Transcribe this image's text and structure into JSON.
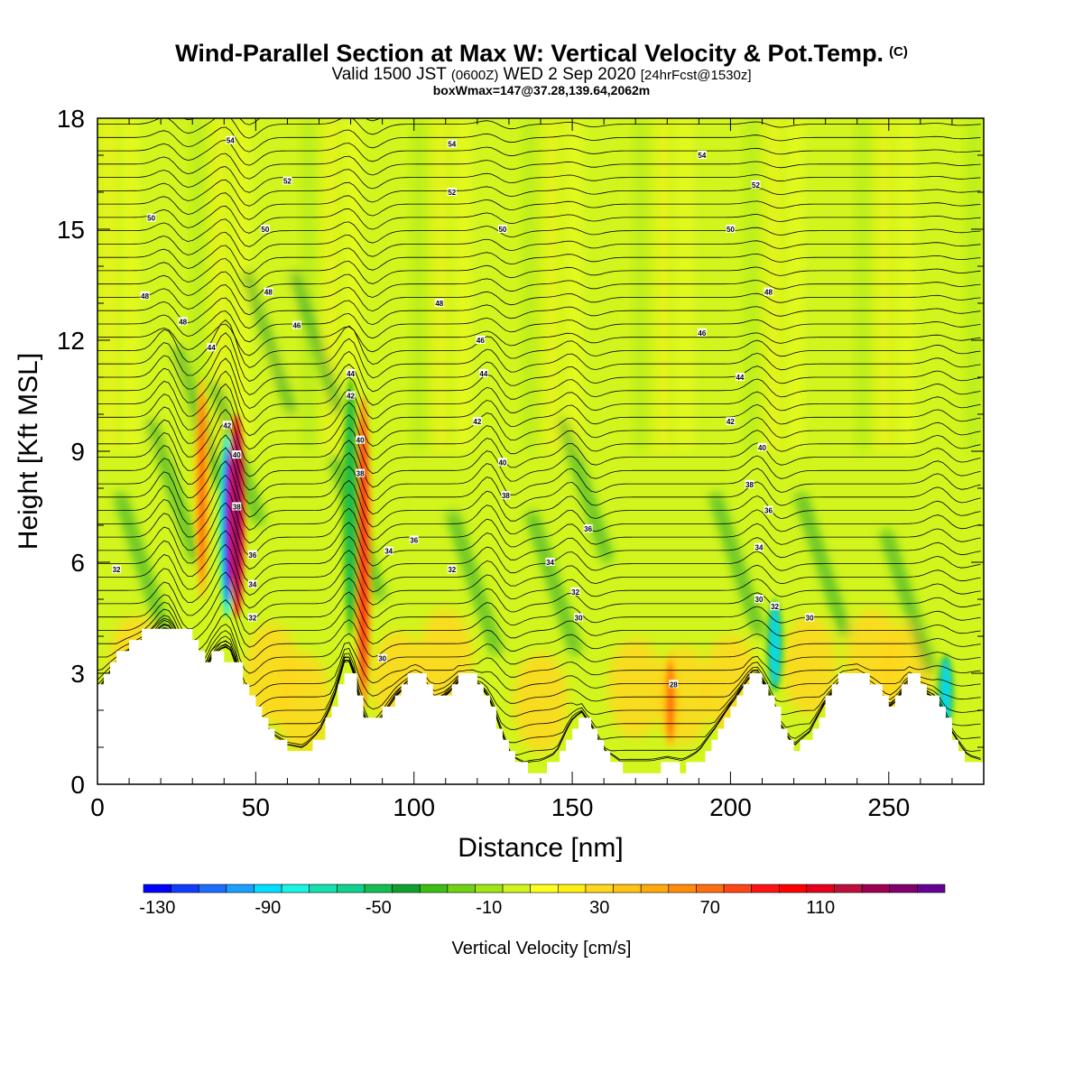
{
  "header": {
    "title": "Wind-Parallel Section at Max W: Vertical Velocity & Pot.Temp.",
    "title_mark": "(C)",
    "valid_a": "Valid 1500 JST ",
    "valid_b": "(0600Z)",
    "valid_c": " WED 2 Sep 2020 ",
    "valid_d": "[24hrFcst@1530z]",
    "boxline": "boxWmax=147@37.28,139.64,2062m"
  },
  "chart_data": {
    "type": "heatmap",
    "xlabel": "Distance [nm]",
    "ylabel": "Height [Kft MSL]",
    "xlim": [
      0,
      280
    ],
    "ylim": [
      0,
      18
    ],
    "x_ticks": [
      0,
      50,
      100,
      150,
      200,
      250
    ],
    "y_ticks": [
      0,
      3,
      6,
      9,
      12,
      15,
      18
    ],
    "terrain_profile": {
      "x": [
        0,
        4,
        8,
        12,
        16,
        20,
        25,
        28,
        30,
        33,
        36,
        40,
        43,
        46,
        50,
        53,
        56,
        60,
        65,
        70,
        75,
        78,
        80,
        83,
        86,
        90,
        95,
        100,
        103,
        106,
        110,
        114,
        118,
        122,
        126,
        130,
        135,
        140,
        145,
        150,
        153,
        156,
        160,
        165,
        170,
        175,
        180,
        185,
        190,
        195,
        200,
        205,
        208,
        212,
        216,
        220,
        225,
        230,
        235,
        240,
        245,
        250,
        253,
        256,
        260,
        265,
        270,
        275,
        280
      ],
      "kft": [
        2.6,
        3.2,
        3.7,
        4.0,
        4.3,
        4.3,
        4.3,
        4.2,
        3.8,
        3.3,
        3.6,
        3.3,
        3.4,
        2.8,
        2.0,
        1.5,
        1.2,
        0.9,
        0.8,
        1.3,
        2.3,
        3.1,
        3.0,
        2.0,
        1.7,
        2.0,
        2.6,
        3.1,
        2.9,
        2.3,
        2.5,
        3.0,
        3.0,
        2.4,
        1.6,
        0.8,
        0.4,
        0.4,
        0.6,
        1.5,
        1.9,
        1.6,
        0.8,
        0.4,
        0.4,
        0.4,
        0.5,
        0.4,
        0.7,
        1.4,
        2.2,
        2.9,
        3.1,
        2.5,
        1.6,
        0.9,
        1.3,
        2.3,
        3.0,
        3.1,
        2.7,
        2.1,
        2.4,
        3.0,
        2.7,
        2.3,
        1.3,
        0.6,
        0.4
      ]
    },
    "vertical_velocity_features": [
      {
        "x": 41,
        "z_bottom": 4.5,
        "z_top": 9.5,
        "w_cms": -130
      },
      {
        "x": 44,
        "z_bottom": 4.5,
        "z_top": 10.0,
        "w_cms": 130
      },
      {
        "x": 33,
        "z_bottom": 5.0,
        "z_top": 11.0,
        "w_cms": 60
      },
      {
        "x": 84,
        "z_bottom": 2.0,
        "z_top": 10.5,
        "w_cms": 80
      },
      {
        "x": 80,
        "z_bottom": 4.0,
        "z_top": 11.0,
        "w_cms": -50
      },
      {
        "x": 181,
        "z_bottom": 1.0,
        "z_top": 3.5,
        "w_cms": 60
      },
      {
        "x": 214,
        "z_bottom": 2.5,
        "z_top": 5.0,
        "w_cms": -90
      },
      {
        "x": 268,
        "z_bottom": 1.5,
        "z_top": 3.5,
        "w_cms": -90
      }
    ],
    "theta_contour_labels": [
      {
        "x": 6,
        "z": 5.8,
        "text": "32"
      },
      {
        "x": 15,
        "z": 13.2,
        "text": "48"
      },
      {
        "x": 17,
        "z": 15.3,
        "text": "50"
      },
      {
        "x": 27,
        "z": 12.5,
        "text": "48"
      },
      {
        "x": 36,
        "z": 11.8,
        "text": "44"
      },
      {
        "x": 41,
        "z": 9.7,
        "text": "42"
      },
      {
        "x": 44,
        "z": 8.9,
        "text": "40"
      },
      {
        "x": 44,
        "z": 7.5,
        "text": "38"
      },
      {
        "x": 49,
        "z": 6.2,
        "text": "36"
      },
      {
        "x": 49,
        "z": 5.4,
        "text": "34"
      },
      {
        "x": 49,
        "z": 4.5,
        "text": "32"
      },
      {
        "x": 42,
        "z": 17.4,
        "text": "54"
      },
      {
        "x": 53,
        "z": 15.0,
        "text": "50"
      },
      {
        "x": 54,
        "z": 13.3,
        "text": "48"
      },
      {
        "x": 60,
        "z": 16.3,
        "text": "52"
      },
      {
        "x": 63,
        "z": 12.4,
        "text": "46"
      },
      {
        "x": 80,
        "z": 11.1,
        "text": "44"
      },
      {
        "x": 80,
        "z": 10.5,
        "text": "42"
      },
      {
        "x": 83,
        "z": 9.3,
        "text": "40"
      },
      {
        "x": 83,
        "z": 8.4,
        "text": "38"
      },
      {
        "x": 92,
        "z": 6.3,
        "text": "34"
      },
      {
        "x": 100,
        "z": 6.6,
        "text": "36"
      },
      {
        "x": 90,
        "z": 3.4,
        "text": "30"
      },
      {
        "x": 108,
        "z": 13.0,
        "text": "48"
      },
      {
        "x": 112,
        "z": 16.0,
        "text": "52"
      },
      {
        "x": 112,
        "z": 5.8,
        "text": "32"
      },
      {
        "x": 112,
        "z": 17.3,
        "text": "54"
      },
      {
        "x": 121,
        "z": 12.0,
        "text": "46"
      },
      {
        "x": 122,
        "z": 11.1,
        "text": "44"
      },
      {
        "x": 120,
        "z": 9.8,
        "text": "42"
      },
      {
        "x": 128,
        "z": 15.0,
        "text": "50"
      },
      {
        "x": 128,
        "z": 8.7,
        "text": "40"
      },
      {
        "x": 129,
        "z": 7.8,
        "text": "38"
      },
      {
        "x": 143,
        "z": 6.0,
        "text": "34"
      },
      {
        "x": 151,
        "z": 5.2,
        "text": "32"
      },
      {
        "x": 152,
        "z": 4.5,
        "text": "30"
      },
      {
        "x": 155,
        "z": 6.9,
        "text": "36"
      },
      {
        "x": 182,
        "z": 2.7,
        "text": "28"
      },
      {
        "x": 191,
        "z": 12.2,
        "text": "46"
      },
      {
        "x": 191,
        "z": 17.0,
        "text": "54"
      },
      {
        "x": 200,
        "z": 15.0,
        "text": "50"
      },
      {
        "x": 203,
        "z": 11.0,
        "text": "44"
      },
      {
        "x": 200,
        "z": 9.8,
        "text": "42"
      },
      {
        "x": 208,
        "z": 16.2,
        "text": "52"
      },
      {
        "x": 210,
        "z": 9.1,
        "text": "40"
      },
      {
        "x": 206,
        "z": 8.1,
        "text": "38"
      },
      {
        "x": 212,
        "z": 7.4,
        "text": "36"
      },
      {
        "x": 209,
        "z": 6.4,
        "text": "34"
      },
      {
        "x": 209,
        "z": 5.0,
        "text": "30"
      },
      {
        "x": 214,
        "z": 4.8,
        "text": "32"
      },
      {
        "x": 212,
        "z": 13.3,
        "text": "48"
      },
      {
        "x": 225,
        "z": 4.5,
        "text": "30"
      }
    ],
    "colorbar": {
      "title": "Vertical Velocity [cm/s]",
      "tick_labels": [
        "-130",
        "-90",
        "-50",
        "-10",
        "30",
        "70",
        "110"
      ],
      "range": [
        -130,
        140
      ],
      "colors": [
        "#0000ff",
        "#0f3dff",
        "#1a6dff",
        "#1aa1ff",
        "#00dfff",
        "#19f5e3",
        "#14e0b0",
        "#0fd28c",
        "#14be50",
        "#0fa030",
        "#3cbe14",
        "#70d214",
        "#a0e614",
        "#d2f51e",
        "#ffff1e",
        "#fff00f",
        "#ffd71e",
        "#ffc314",
        "#ffaa0a",
        "#ff8c0a",
        "#ff6e0f",
        "#ff4614",
        "#ff1414",
        "#ff0000",
        "#e6001e",
        "#be0f3c",
        "#a00050",
        "#82006e",
        "#640096"
      ]
    }
  }
}
